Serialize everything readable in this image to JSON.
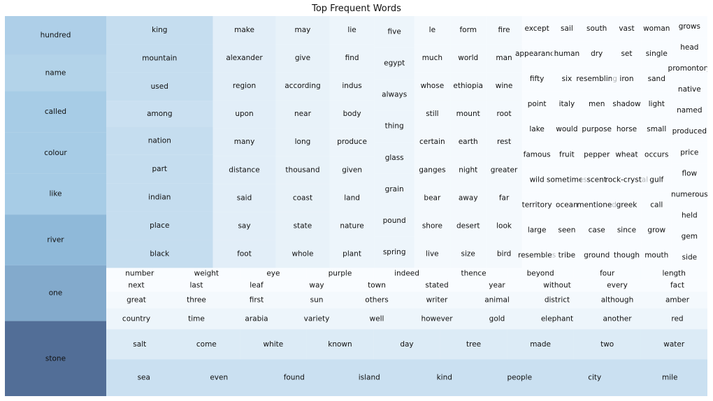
{
  "chart_data": {
    "type": "treemap",
    "title": "Top Frequent Words",
    "colors": {
      "darkest": "#08306b",
      "mid": "#6ba8d4",
      "lightest": "#f7fbff"
    },
    "columns": [
      {
        "words": [
          "hundred",
          "name",
          "called",
          "colour",
          "like",
          "river",
          "one",
          "stone"
        ],
        "values": [
          16,
          15,
          17,
          17,
          17,
          21,
          23,
          31
        ]
      },
      {
        "words": [
          "king",
          "mountain",
          "used",
          "among",
          "nation",
          "part",
          "indian",
          "place",
          "black"
        ],
        "values": [
          12,
          12,
          12,
          11,
          12,
          12,
          12,
          12,
          12
        ]
      },
      {
        "words": [
          "make",
          "alexander",
          "region",
          "upon",
          "many",
          "distance",
          "said",
          "say",
          "foot"
        ],
        "values": [
          7,
          7,
          7,
          7,
          7,
          7,
          7,
          7,
          7
        ]
      },
      {
        "words": [
          "may",
          "give",
          "according",
          "near",
          "long",
          "thousand",
          "coast",
          "state",
          "whole"
        ],
        "values": [
          6,
          6,
          6,
          6,
          6,
          6,
          6,
          6,
          6
        ]
      },
      {
        "words": [
          "lie",
          "find",
          "indus",
          "body",
          "produce",
          "given",
          "land",
          "nature",
          "plant"
        ],
        "values": [
          5,
          5,
          5,
          5,
          5,
          5,
          5,
          5,
          5
        ]
      },
      {
        "words": [
          "five",
          "egypt",
          "always",
          "thing",
          "glass",
          "grain",
          "pound",
          "spring"
        ],
        "values": [
          5,
          5,
          5,
          5,
          5,
          5,
          5,
          5
        ]
      },
      {
        "words": [
          "le",
          "much",
          "whose",
          "still",
          "certain",
          "ganges",
          "bear",
          "shore",
          "live"
        ],
        "values": [
          4,
          4,
          4,
          4,
          4,
          4,
          4,
          4,
          4
        ]
      },
      {
        "words": [
          "form",
          "world",
          "ethiopia",
          "mount",
          "earth",
          "night",
          "away",
          "desert",
          "size"
        ],
        "values": [
          4,
          4,
          4,
          4,
          4,
          4,
          4,
          4,
          4
        ]
      },
      {
        "words": [
          "fire",
          "man",
          "wine",
          "root",
          "rest",
          "greater",
          "far",
          "look",
          "bird"
        ],
        "values": [
          4,
          4,
          4,
          4,
          4,
          4,
          4,
          4,
          4
        ]
      },
      {
        "words": [
          "except",
          "appearance",
          "fifty",
          "point",
          "lake",
          "famous",
          "wild",
          "territory",
          "large",
          "resembles"
        ],
        "values": [
          3,
          3,
          3,
          3,
          3,
          3,
          3,
          3,
          3,
          3
        ]
      },
      {
        "words": [
          "sail",
          "human",
          "six",
          "italy",
          "would",
          "fruit",
          "sometimes",
          "ocean",
          "seen",
          "tribe"
        ],
        "values": [
          3,
          3,
          3,
          3,
          3,
          3,
          3,
          3,
          3,
          3
        ]
      },
      {
        "words": [
          "south",
          "dry",
          "resembling",
          "men",
          "purpose",
          "pepper",
          "scent",
          "mentioned",
          "case",
          "ground"
        ],
        "values": [
          3,
          3,
          3,
          3,
          3,
          3,
          3,
          3,
          3,
          3
        ]
      },
      {
        "words": [
          "vast",
          "set",
          "iron",
          "shadow",
          "horse",
          "wheat",
          "rock-crystal",
          "greek",
          "since",
          "though"
        ],
        "values": [
          3,
          3,
          3,
          3,
          3,
          3,
          3,
          3,
          3,
          3
        ]
      },
      {
        "words": [
          "woman",
          "single",
          "sand",
          "light",
          "small",
          "occurs",
          "gulf",
          "call",
          "grow",
          "mouth"
        ],
        "values": [
          3,
          3,
          3,
          3,
          3,
          3,
          3,
          3,
          3,
          3
        ]
      },
      {
        "words": [
          "grows",
          "head",
          "promontory",
          "native",
          "named",
          "produced",
          "price",
          "flow",
          "numerous",
          "held",
          "gem",
          "side"
        ],
        "values": [
          3,
          3,
          3,
          3,
          3,
          3,
          3,
          3,
          3,
          3,
          3,
          3
        ]
      }
    ],
    "rows": [
      {
        "words": [
          "number",
          "weight",
          "eye",
          "purple",
          "indeed",
          "thence",
          "beyond",
          "four",
          "length"
        ],
        "values": [
          3,
          3,
          3,
          3,
          3,
          3,
          3,
          3,
          3
        ]
      },
      {
        "words": [
          "next",
          "last",
          "leaf",
          "way",
          "town",
          "stated",
          "year",
          "without",
          "every",
          "fact"
        ],
        "values": [
          3,
          3,
          3,
          3,
          3,
          3,
          3,
          3,
          3,
          3
        ]
      },
      {
        "words": [
          "great",
          "three",
          "first",
          "sun",
          "others",
          "writer",
          "animal",
          "district",
          "although",
          "amber"
        ],
        "values": [
          4,
          4,
          4,
          4,
          4,
          4,
          4,
          4,
          4,
          4
        ]
      },
      {
        "words": [
          "country",
          "time",
          "arabia",
          "variety",
          "well",
          "however",
          "gold",
          "elephant",
          "another",
          "red"
        ],
        "values": [
          5,
          5,
          5,
          5,
          5,
          5,
          5,
          5,
          5,
          5
        ]
      },
      {
        "words": [
          "salt",
          "come",
          "white",
          "known",
          "day",
          "tree",
          "made",
          "two",
          "water"
        ],
        "values": [
          8,
          8,
          8,
          8,
          8,
          8,
          8,
          8,
          8
        ]
      },
      {
        "words": [
          "sea",
          "even",
          "found",
          "island",
          "kind",
          "people",
          "city",
          "mile"
        ],
        "values": [
          11,
          11,
          11,
          11,
          11,
          11,
          11,
          11
        ]
      }
    ]
  }
}
